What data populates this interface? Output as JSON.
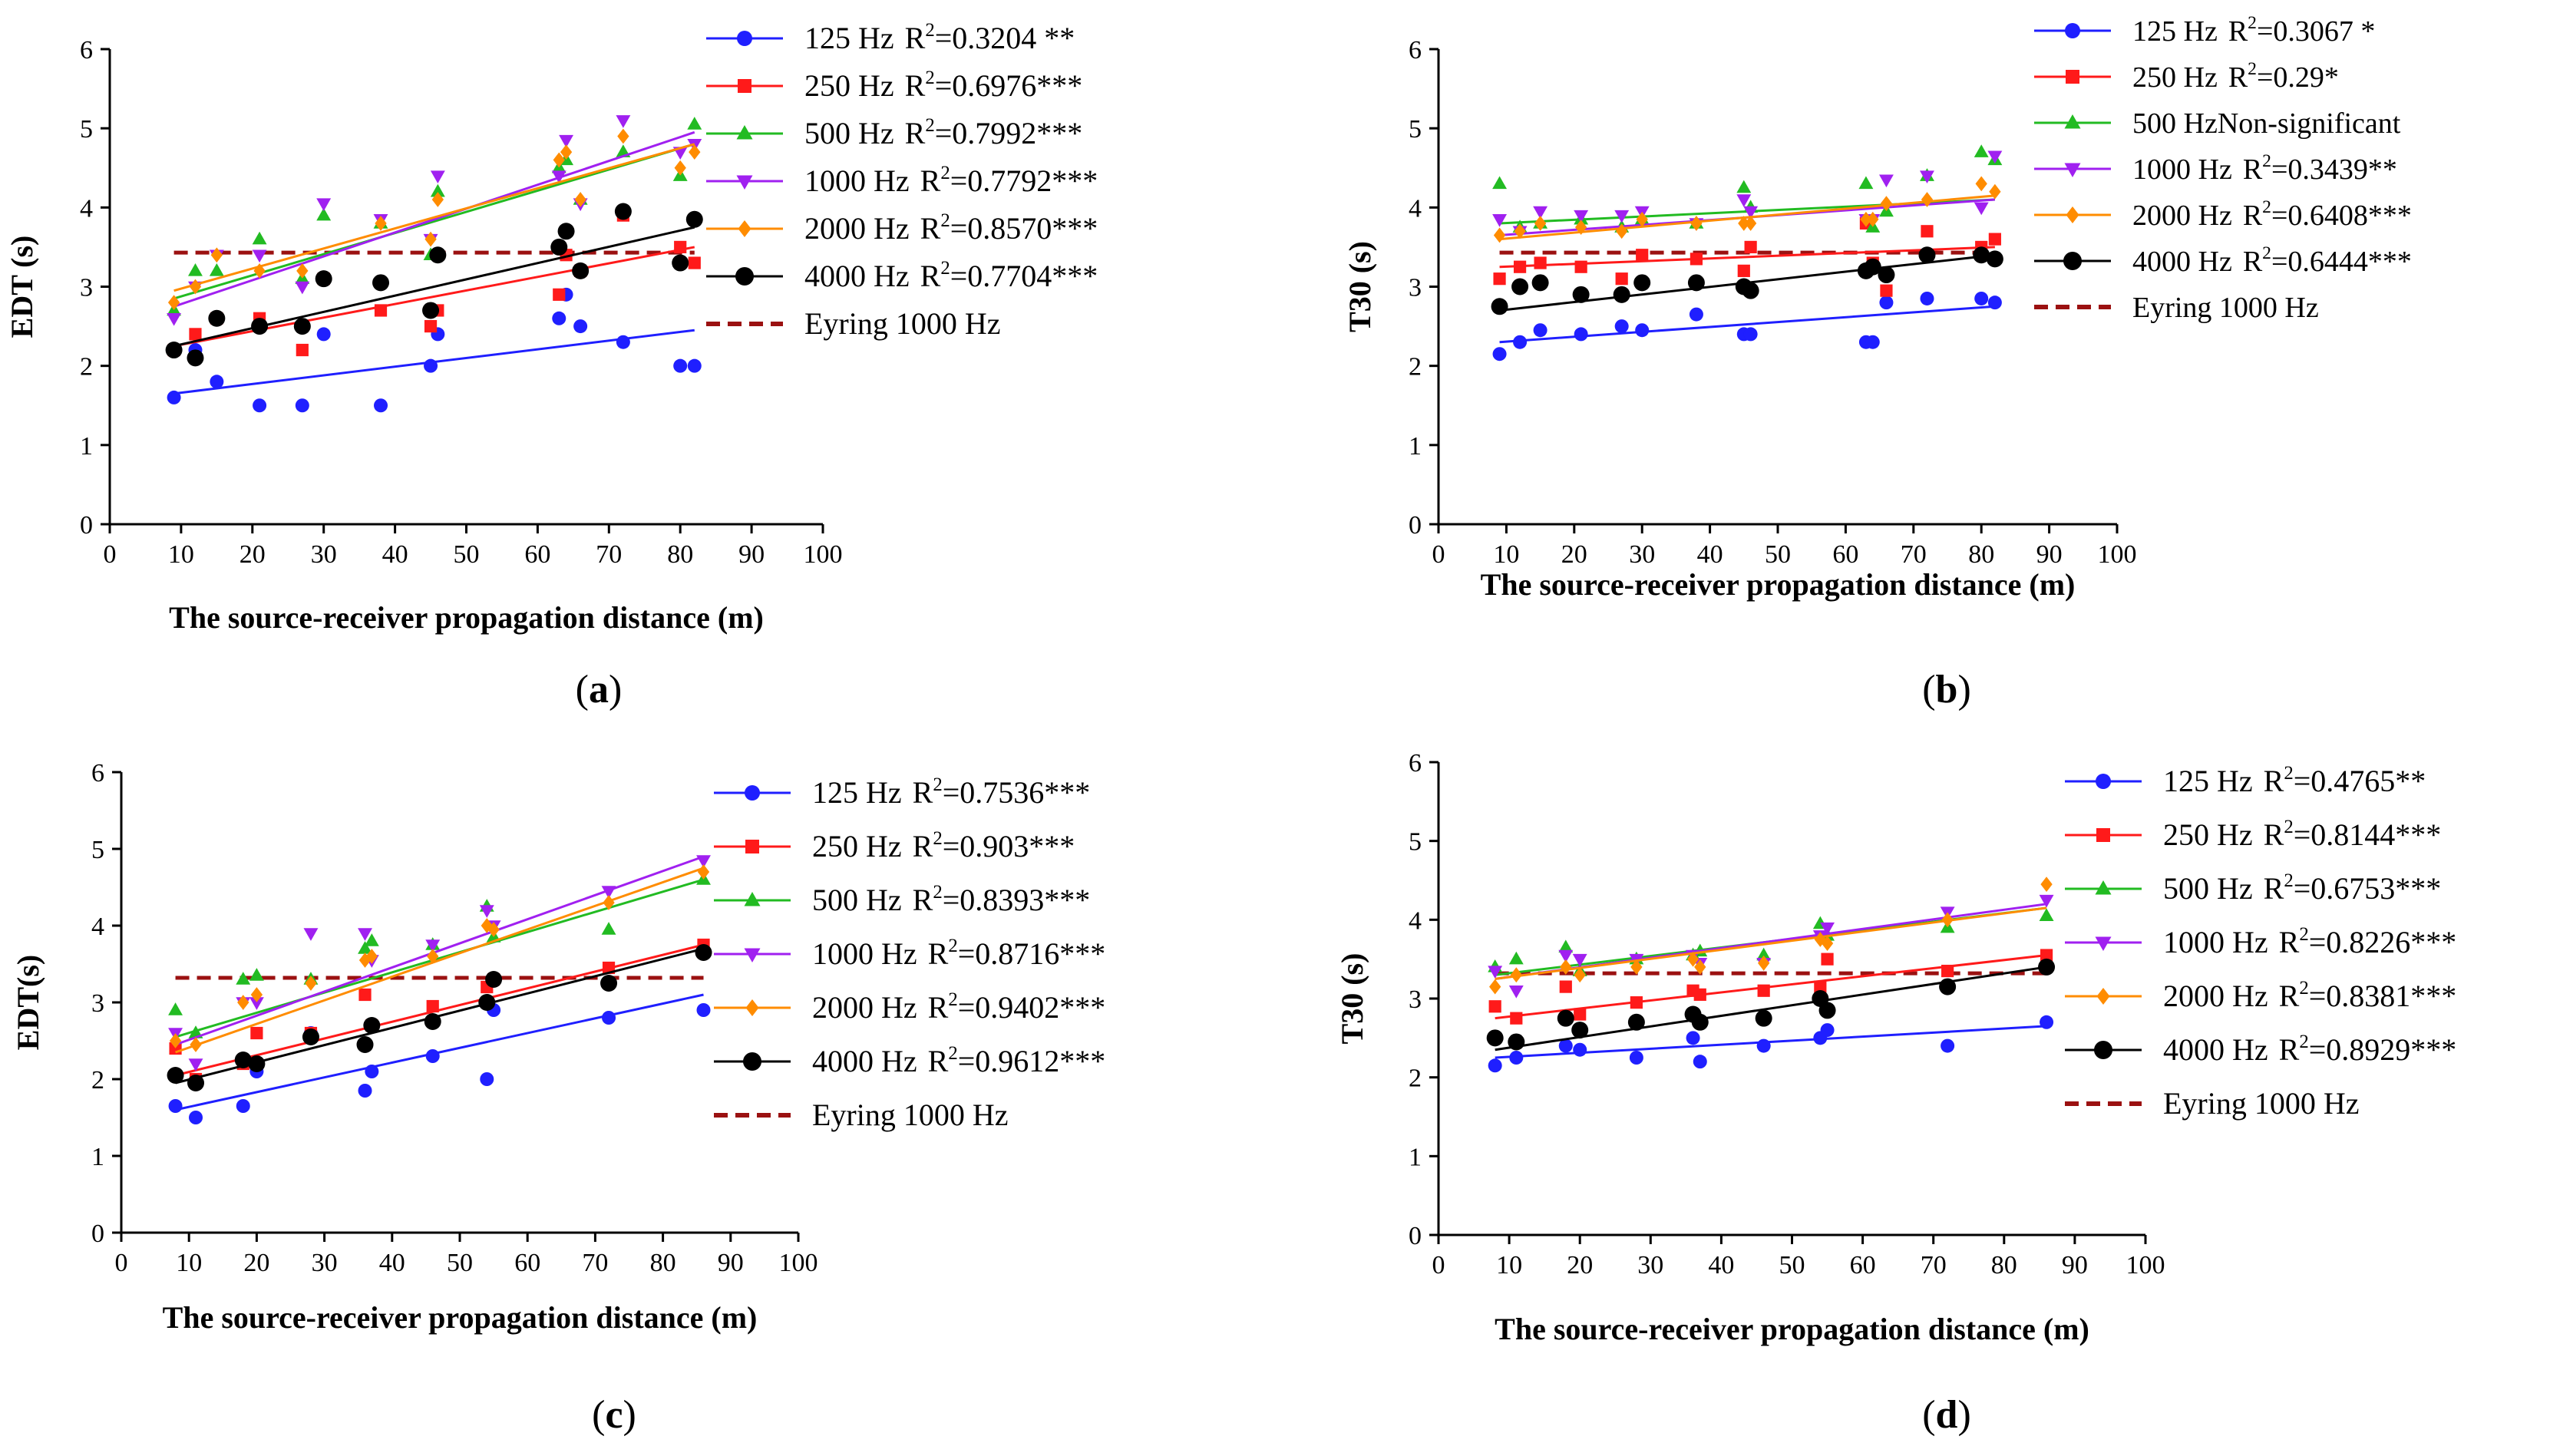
{
  "colors": {
    "125 Hz": "#1f1fff",
    "250 Hz": "#ff1a1a",
    "500 Hz": "#22bb22",
    "1000 Hz": "#a020f0",
    "2000 Hz": "#ff8c00",
    "4000 Hz": "#000000",
    "Eyring": "#9b1111"
  },
  "chart_data": [
    {
      "id": "a",
      "type": "scatter",
      "caption": "(a)",
      "ylabel": "EDT (s)",
      "xlabel": "The source-receiver propagation distance (m)",
      "xlim": [
        0,
        100
      ],
      "ylim": [
        0,
        6
      ],
      "xticks": [
        "0",
        "10",
        "20",
        "30",
        "40",
        "50",
        "60",
        "70",
        "80",
        "90",
        "100"
      ],
      "yticks": [
        "0",
        "1",
        "2",
        "3",
        "4",
        "5",
        "6"
      ],
      "x": [
        9,
        12,
        15,
        21,
        27,
        30,
        38,
        45,
        46,
        63,
        64,
        66,
        72,
        80,
        82
      ],
      "eyring": 3.43,
      "series": [
        {
          "name": "125 Hz",
          "r2": "0.3204 **",
          "values": [
            1.6,
            2.2,
            1.8,
            1.5,
            1.5,
            2.4,
            1.5,
            2.0,
            2.4,
            2.6,
            2.9,
            2.5,
            2.3,
            2.0,
            2.0
          ],
          "fit": [
            1.65,
            2.45
          ]
        },
        {
          "name": "250 Hz",
          "r2": "0.6976***",
          "values": [
            2.2,
            2.4,
            2.6,
            2.6,
            2.2,
            3.1,
            2.7,
            2.5,
            2.7,
            2.9,
            3.4,
            3.2,
            3.9,
            3.5,
            3.3
          ],
          "fit": [
            2.25,
            3.5
          ]
        },
        {
          "name": "500 Hz",
          "r2": "0.7992***",
          "values": [
            2.7,
            3.2,
            3.2,
            3.6,
            3.1,
            3.9,
            3.8,
            3.4,
            4.2,
            4.5,
            4.6,
            4.1,
            4.7,
            4.4,
            5.05
          ],
          "fit": [
            2.85,
            4.8
          ]
        },
        {
          "name": "1000 Hz",
          "r2": "0.7792***",
          "values": [
            2.6,
            3.0,
            3.4,
            3.4,
            3.0,
            4.05,
            3.85,
            3.6,
            4.4,
            4.4,
            4.85,
            4.05,
            5.1,
            4.7,
            4.8
          ],
          "fit": [
            2.75,
            4.95
          ]
        },
        {
          "name": "2000 Hz",
          "r2": "0.8570***",
          "values": [
            2.8,
            3.0,
            3.4,
            3.2,
            3.2,
            3.1,
            3.8,
            3.6,
            4.1,
            4.6,
            4.7,
            4.1,
            4.9,
            4.5,
            4.7
          ],
          "fit": [
            2.95,
            4.8
          ]
        },
        {
          "name": "4000 Hz",
          "r2": "0.7704***",
          "values": [
            2.2,
            2.1,
            2.6,
            2.5,
            2.5,
            3.1,
            3.05,
            2.7,
            3.4,
            3.5,
            3.7,
            3.2,
            3.95,
            3.3,
            3.85
          ],
          "fit": [
            2.25,
            3.75
          ]
        }
      ],
      "legend": [
        {
          "freq": "125 Hz",
          "r2": "0.3204 **"
        },
        {
          "freq": "250 Hz",
          "r2": "0.6976***"
        },
        {
          "freq": "500 Hz",
          "r2": "0.7992***"
        },
        {
          "freq": "1000 Hz",
          "r2": "0.7792***"
        },
        {
          "freq": "2000 Hz",
          "r2": "0.8570***"
        },
        {
          "freq": "4000 Hz",
          "r2": "0.7704***"
        },
        {
          "freq": "Eyring 1000 Hz",
          "r2": ""
        }
      ]
    },
    {
      "id": "b",
      "type": "scatter",
      "caption": "(b)",
      "ylabel": "T30 (s)",
      "xlabel": "The source-receiver propagation distance (m)",
      "xlim": [
        0,
        100
      ],
      "ylim": [
        0,
        6
      ],
      "xticks": [
        "0",
        "10",
        "20",
        "30",
        "40",
        "50",
        "60",
        "70",
        "80",
        "90",
        "100"
      ],
      "yticks": [
        "0",
        "1",
        "2",
        "3",
        "4",
        "5",
        "6"
      ],
      "x": [
        9,
        12,
        15,
        21,
        27,
        30,
        38,
        45,
        46,
        63,
        64,
        66,
        72,
        80,
        82
      ],
      "eyring": 3.43,
      "series": [
        {
          "name": "125 Hz",
          "r2": "0.3067 *",
          "values": [
            2.15,
            2.3,
            2.45,
            2.4,
            2.5,
            2.45,
            2.65,
            2.4,
            2.4,
            2.3,
            2.3,
            2.8,
            2.85,
            2.85,
            2.8
          ],
          "fit": [
            2.3,
            2.75
          ]
        },
        {
          "name": "250 Hz",
          "r2": "0.29*",
          "values": [
            3.1,
            3.25,
            3.3,
            3.25,
            3.1,
            3.4,
            3.35,
            3.2,
            3.5,
            3.8,
            3.3,
            2.95,
            3.7,
            3.5,
            3.6
          ],
          "fit": [
            3.25,
            3.5
          ]
        },
        {
          "name": "500 Hz",
          "r2": "Non-significant",
          "values": [
            4.3,
            3.75,
            3.8,
            3.85,
            3.75,
            3.85,
            3.8,
            4.25,
            4.0,
            4.3,
            3.75,
            3.95,
            4.4,
            4.7,
            4.6
          ],
          "fit": [
            3.8,
            4.1
          ]
        },
        {
          "name": "1000 Hz",
          "r2": "0.3439**",
          "values": [
            3.85,
            3.7,
            3.95,
            3.9,
            3.9,
            3.95,
            3.8,
            4.1,
            3.95,
            3.85,
            3.85,
            4.35,
            4.4,
            4.0,
            4.65
          ],
          "fit": [
            3.65,
            4.1
          ]
        },
        {
          "name": "2000 Hz",
          "r2": "0.6408***",
          "values": [
            3.65,
            3.7,
            3.8,
            3.75,
            3.7,
            3.85,
            3.8,
            3.8,
            3.8,
            3.85,
            3.85,
            4.05,
            4.1,
            4.3,
            4.2
          ],
          "fit": [
            3.6,
            4.15
          ]
        },
        {
          "name": "4000 Hz",
          "r2": "0.6444***",
          "values": [
            2.75,
            3.0,
            3.05,
            2.9,
            2.9,
            3.05,
            3.05,
            3.0,
            2.95,
            3.2,
            3.25,
            3.15,
            3.4,
            3.4,
            3.35
          ],
          "fit": [
            2.7,
            3.4
          ]
        }
      ],
      "legend": [
        {
          "freq": "125 Hz",
          "r2": "0.3067 *"
        },
        {
          "freq": "250 Hz",
          "r2": "0.29*"
        },
        {
          "freq": "500 Hz",
          "r2": "Non-significant"
        },
        {
          "freq": "1000 Hz",
          "r2": "0.3439**"
        },
        {
          "freq": "2000 Hz",
          "r2": "0.6408***"
        },
        {
          "freq": "4000 Hz",
          "r2": "0.6444***"
        },
        {
          "freq": "Eyring 1000 Hz",
          "r2": ""
        }
      ]
    },
    {
      "id": "c",
      "type": "scatter",
      "caption": "(c)",
      "ylabel": "EDT(s)",
      "xlabel": "The source-receiver propagation distance (m)",
      "xlim": [
        0,
        100
      ],
      "ylim": [
        0,
        6
      ],
      "xticks": [
        "0",
        "10",
        "20",
        "30",
        "40",
        "50",
        "60",
        "70",
        "80",
        "90",
        "100"
      ],
      "yticks": [
        "0",
        "1",
        "2",
        "3",
        "4",
        "5",
        "6"
      ],
      "x": [
        8,
        11,
        18,
        20,
        28,
        36,
        37,
        46,
        54,
        55,
        72,
        86
      ],
      "eyring": 3.32,
      "series": [
        {
          "name": "125 Hz",
          "r2": "0.7536***",
          "values": [
            1.65,
            1.5,
            1.65,
            2.1,
            2.6,
            1.85,
            2.1,
            2.3,
            2.0,
            2.9,
            2.8,
            2.9
          ],
          "fit": [
            1.6,
            3.1
          ]
        },
        {
          "name": "250 Hz",
          "r2": "0.903***",
          "values": [
            2.4,
            2.0,
            2.2,
            2.6,
            2.6,
            3.1,
            2.7,
            2.95,
            3.2,
            3.3,
            3.45,
            3.75
          ],
          "fit": [
            2.05,
            3.75
          ]
        },
        {
          "name": "500 Hz",
          "r2": "0.8393***",
          "values": [
            2.9,
            2.6,
            3.3,
            3.35,
            3.3,
            3.7,
            3.8,
            3.75,
            4.25,
            3.85,
            3.95,
            4.6
          ],
          "fit": [
            2.55,
            4.6
          ]
        },
        {
          "name": "1000 Hz",
          "r2": "0.8716***",
          "values": [
            2.6,
            2.2,
            3.0,
            3.0,
            3.9,
            3.9,
            3.55,
            3.75,
            4.2,
            4.0,
            4.45,
            4.85
          ],
          "fit": [
            2.45,
            4.9
          ]
        },
        {
          "name": "2000 Hz",
          "r2": "0.9402***",
          "values": [
            2.5,
            2.45,
            3.0,
            3.1,
            3.25,
            3.55,
            3.6,
            3.6,
            4.0,
            3.95,
            4.3,
            4.7
          ],
          "fit": [
            2.35,
            4.75
          ]
        },
        {
          "name": "4000 Hz",
          "r2": "0.9612***",
          "values": [
            2.05,
            1.95,
            2.25,
            2.2,
            2.55,
            2.45,
            2.7,
            2.75,
            3.0,
            3.3,
            3.25,
            3.65
          ],
          "fit": [
            1.95,
            3.7
          ]
        }
      ],
      "legend": [
        {
          "freq": "125 Hz",
          "r2": "0.7536***"
        },
        {
          "freq": "250 Hz",
          "r2": "0.903***"
        },
        {
          "freq": "500 Hz",
          "r2": "0.8393***"
        },
        {
          "freq": "1000 Hz",
          "r2": "0.8716***"
        },
        {
          "freq": "2000 Hz",
          "r2": "0.9402***"
        },
        {
          "freq": "4000 Hz",
          "r2": "0.9612***"
        },
        {
          "freq": "Eyring 1000 Hz",
          "r2": ""
        }
      ]
    },
    {
      "id": "d",
      "type": "scatter",
      "caption": "(d)",
      "ylabel": "T30 (s)",
      "xlabel": "The source-receiver propagation distance (m)",
      "xlim": [
        0,
        100
      ],
      "ylim": [
        0,
        6
      ],
      "xticks": [
        "0",
        "10",
        "20",
        "30",
        "40",
        "50",
        "60",
        "70",
        "80",
        "90",
        "100"
      ],
      "yticks": [
        "0",
        "1",
        "2",
        "3",
        "4",
        "5",
        "6"
      ],
      "x": [
        8,
        11,
        18,
        20,
        28,
        36,
        37,
        46,
        54,
        55,
        72,
        86
      ],
      "eyring": 3.32,
      "series": [
        {
          "name": "125 Hz",
          "r2": "0.4765**",
          "values": [
            2.15,
            2.25,
            2.4,
            2.35,
            2.25,
            2.5,
            2.2,
            2.4,
            2.5,
            2.6,
            2.4,
            2.7
          ],
          "fit": [
            2.25,
            2.65
          ]
        },
        {
          "name": "250 Hz",
          "r2": "0.8144***",
          "values": [
            2.9,
            2.75,
            3.15,
            2.8,
            2.95,
            3.1,
            3.05,
            3.1,
            3.15,
            3.5,
            3.35,
            3.55
          ],
          "fit": [
            2.75,
            3.55
          ]
        },
        {
          "name": "500 Hz",
          "r2": "0.6753***",
          "values": [
            3.4,
            3.5,
            3.65,
            3.35,
            3.5,
            3.55,
            3.6,
            3.55,
            3.95,
            3.8,
            3.9,
            4.05
          ],
          "fit": [
            3.3,
            4.15
          ]
        },
        {
          "name": "1000 Hz",
          "r2": "0.8226***",
          "values": [
            3.35,
            3.1,
            3.55,
            3.5,
            3.5,
            3.55,
            3.45,
            3.45,
            3.8,
            3.9,
            4.1,
            4.25
          ],
          "fit": [
            3.25,
            4.2
          ]
        },
        {
          "name": "2000 Hz",
          "r2": "0.8381***",
          "values": [
            3.15,
            3.3,
            3.4,
            3.3,
            3.4,
            3.5,
            3.4,
            3.45,
            3.75,
            3.7,
            4.0,
            4.45
          ],
          "fit": [
            3.25,
            4.15
          ]
        },
        {
          "name": "4000 Hz",
          "r2": "0.8929***",
          "values": [
            2.5,
            2.45,
            2.75,
            2.6,
            2.7,
            2.8,
            2.7,
            2.75,
            3.0,
            2.85,
            3.15,
            3.4
          ],
          "fit": [
            2.35,
            3.4
          ]
        }
      ],
      "legend": [
        {
          "freq": "125 Hz",
          "r2": "0.4765**"
        },
        {
          "freq": "250 Hz",
          "r2": "0.8144***"
        },
        {
          "freq": "500 Hz",
          "r2": "0.6753***"
        },
        {
          "freq": "1000 Hz",
          "r2": "0.8226***"
        },
        {
          "freq": "2000 Hz",
          "r2": "0.8381***"
        },
        {
          "freq": "4000 Hz",
          "r2": "0.8929***"
        },
        {
          "freq": "Eyring 1000 Hz",
          "r2": ""
        }
      ]
    }
  ]
}
